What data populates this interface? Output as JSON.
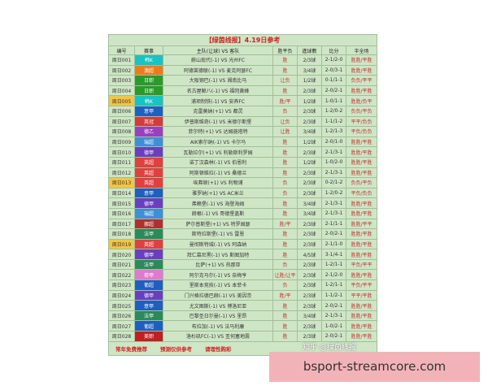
{
  "header": {
    "title": "【绿茵线报】4.19日参考"
  },
  "columns": [
    "编号",
    "赛事",
    "主队(让球) VS 客队",
    "胜平负",
    "進球數",
    "比分",
    "半全场"
  ],
  "rows": [
    {
      "id": "周日001",
      "league": "韩K",
      "color": "#17c3c3",
      "match": "蔚山现代(-1) VS 光州FC",
      "result": "胜",
      "goals": "2/3球",
      "score": "2-1/2-0",
      "half_full": "胜胜/平胜"
    },
    {
      "id": "周日002",
      "league": "澳超",
      "color": "#f07a1a",
      "match": "阿德莱德联(-1) VS 麦克阿瑟FC",
      "result": "胜",
      "goals": "3/4球",
      "score": "2-0/3-1",
      "half_full": "胜胜/平胜"
    },
    {
      "id": "周日003",
      "league": "日职",
      "color": "#2a9a2a",
      "match": "大阪钢巴(-1) VS 湘南比马",
      "result": "让负",
      "goals": "1/2球",
      "score": "0-1/1-1",
      "half_full": "负负/平平"
    },
    {
      "id": "周日004",
      "league": "日职",
      "color": "#2a9a2a",
      "match": "名古屋鲸八(-1) VS 福冈黄蜂",
      "result": "胜",
      "goals": "2/3球",
      "score": "2-0/2-1",
      "half_full": "胜胜/平胜"
    },
    {
      "id": "周日005",
      "id_color": "#f5c542",
      "league": "韩K",
      "color": "#17c3c3",
      "match": "浦项制铁(-1) VS 安养FC",
      "result": "胜/平",
      "goals": "1/2球",
      "score": "1-0/1-1",
      "half_full": "胜胜/负平"
    },
    {
      "id": "周日006",
      "league": "意甲",
      "color": "#1f5fbf",
      "match": "克雷莫纳(+1) VS 都灵",
      "result": "负",
      "goals": "2/3球",
      "score": "1-2/0-2",
      "half_full": "负负/平负"
    },
    {
      "id": "周日007",
      "league": "英冠",
      "color": "#d63a3a",
      "match": "伊普斯维奇(-1) VS 米德尔斯堡",
      "result": "让负",
      "goals": "2/3球",
      "score": "1-1/1-2",
      "half_full": "平平/负负"
    },
    {
      "id": "周日008",
      "league": "德乙",
      "color": "#9a3fbf",
      "match": "菲尔特(+1) VS 达姆施塔特",
      "result": "让胜",
      "goals": "3/4球",
      "score": "1-2/1-3",
      "half_full": "平负/负负"
    },
    {
      "id": "周日009",
      "league": "瑞超",
      "color": "#3f8fd6",
      "match": "AIK索尔纳(-1) VS 卡尔马",
      "result": "胜",
      "goals": "1/2球",
      "score": "2-0/1-0",
      "half_full": "胜胜/平胜"
    },
    {
      "id": "周日010",
      "league": "德甲",
      "color": "#6a3fbf",
      "match": "瓦勒拉尔(+1) VS 利勒斯利罗姆",
      "result": "胜",
      "goals": "2/3球",
      "score": "2-1/3-1",
      "half_full": "胜胜/平胜"
    },
    {
      "id": "周日011",
      "league": "英超",
      "color": "#e04040",
      "match": "诺丁汉森林(-1) VS 伯恩利",
      "result": "胜",
      "goals": "1/2球",
      "score": "1-0/2-0",
      "half_full": "胜胜/平胜"
    },
    {
      "id": "周日012",
      "league": "英超",
      "color": "#e04040",
      "match": "阿斯顿维拉(-1) VS 桑德兰",
      "result": "胜",
      "goals": "2/3球",
      "score": "2-1/3-1",
      "half_full": "胜胜/平胜"
    },
    {
      "id": "周日013",
      "id_color": "#f5c542",
      "league": "英超",
      "color": "#e04040",
      "match": "埃弗顿(+1) VS 利物浦",
      "result": "负",
      "goals": "2/3球",
      "score": "0-2/1-2",
      "half_full": "负负/平负"
    },
    {
      "id": "周日014",
      "league": "意甲",
      "color": "#1f5fbf",
      "match": "雅罗纳(+1) VS AC米兰",
      "result": "负",
      "goals": "2/3球",
      "score": "1-2/0-2",
      "half_full": "平负/负负"
    },
    {
      "id": "周日015",
      "league": "德甲",
      "color": "#6a3fbf",
      "match": "弗赖堡(-1) VS 海登海姆",
      "result": "胜",
      "goals": "3/4球",
      "score": "2-1/3-1",
      "half_full": "胜胜/平胜"
    },
    {
      "id": "周日016",
      "league": "瑞超",
      "color": "#3f8fd6",
      "match": "赫根(-1) VS 哥德堡盖斯",
      "result": "胜",
      "goals": "3/4球",
      "score": "2-1/3-1",
      "half_full": "胜胜/平胜"
    },
    {
      "id": "周日017",
      "league": "挪超",
      "color": "#b03030",
      "match": "萨尔普斯堡(+1) VS 特罗姆瑟",
      "result": "胜/平",
      "goals": "2/3球",
      "score": "2-1/1-1",
      "half_full": "胜胜/平平"
    },
    {
      "id": "周日018",
      "league": "法甲",
      "color": "#2a8a5a",
      "match": "斯特拉斯堡(-1) VS 雷恩",
      "result": "胜",
      "goals": "2/3球",
      "score": "2-0/2-1",
      "half_full": "胜胜/平胜"
    },
    {
      "id": "周日019",
      "id_color": "#f5c542",
      "league": "英超",
      "color": "#e04040",
      "match": "曼彻斯特城(-1) VS 阿森纳",
      "result": "胜",
      "goals": "2/3球",
      "score": "2-1/1-0",
      "half_full": "胜胜/平胜"
    },
    {
      "id": "周日020",
      "league": "德甲",
      "color": "#6a3fbf",
      "match": "拜仁慕尼黑(-1) VS 斯图加特",
      "result": "胜",
      "goals": "4/5球",
      "score": "3-1/4-1",
      "half_full": "胜胜/平胜"
    },
    {
      "id": "周日021",
      "league": "法甲",
      "color": "#2a8a5a",
      "match": "比萨(+1) VS 热那亚",
      "result": "负",
      "goals": "2/3球",
      "score": "1-2/1-1",
      "half_full": "平负/平平"
    },
    {
      "id": "周日022",
      "league": "荷甲",
      "color": "#e07ad0",
      "match": "阿尔克马尔(-1) VS 奈梅亨",
      "result": "让胜/让平",
      "goals": "2/3球",
      "score": "2-1/2-0",
      "half_full": "胜胜/平胜"
    },
    {
      "id": "周日023",
      "league": "葡超",
      "color": "#1f5fbf",
      "match": "里斯本竞技(-1) VS 本菲卡",
      "result": "负",
      "goals": "2/3球",
      "score": "1-2/1-1",
      "half_full": "平负/平平"
    },
    {
      "id": "周日024",
      "league": "德甲",
      "color": "#6a3fbf",
      "match": "门兴格拉德巴赫(-1) VS 美因茨",
      "result": "胜/平",
      "goals": "2/3球",
      "score": "1-1/2-1",
      "half_full": "平平/平胜"
    },
    {
      "id": "周日025",
      "league": "意甲",
      "color": "#1f5fbf",
      "match": "尤文图斯(-1) VS 博洛尼亚",
      "result": "胜",
      "goals": "2/3球",
      "score": "2-0/2-1",
      "half_full": "胜胜/平胜"
    },
    {
      "id": "周日026",
      "league": "法甲",
      "color": "#2a8a5a",
      "match": "巴黎圣日尔曼(-1) VS 里昂",
      "result": "胜",
      "goals": "3/4球",
      "score": "2-1/3-1",
      "half_full": "胜胜/平胜"
    },
    {
      "id": "周日027",
      "league": "葡超",
      "color": "#1f5fbf",
      "match": "布拉加(-1) VS 法马利康",
      "result": "胜",
      "goals": "2/3球",
      "score": "1-0/2-1",
      "half_full": "胜胜/平胜"
    },
    {
      "id": "周日028",
      "league": "美职",
      "color": "#c02020",
      "match": "洛杉矶FC(-1) VS 圣何塞地震",
      "result": "胜",
      "goals": "2/3球",
      "score": "2-0/2-1",
      "half_full": "胜胜/平胜"
    }
  ],
  "footer": [
    "常年免费推荐",
    "预测仅供参考",
    "请理性购彩"
  ],
  "watermark": "知乎 @绿茵线报",
  "banner": "bsport-streamcore.com"
}
